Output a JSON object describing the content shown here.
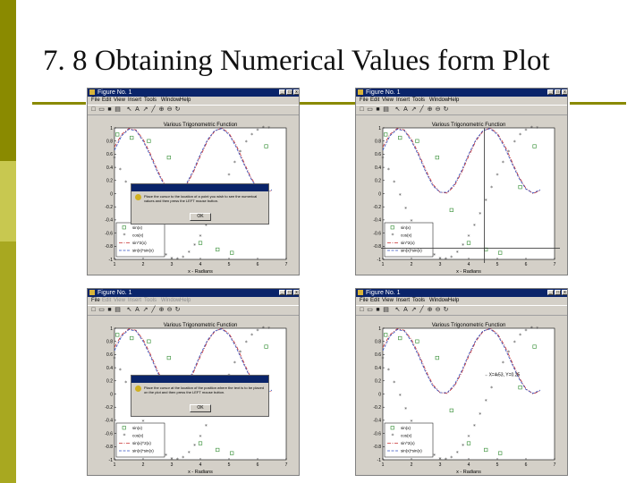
{
  "slide": {
    "title": "7. 8 Obtaining Numerical Values form Plot",
    "colors": {
      "sidebar_top": "#8a8a00",
      "sidebar_mid": "#c8c850",
      "sidebar_bottom": "#a8a820",
      "rule": "#8a8a00"
    }
  },
  "figure_window": {
    "title": "Figure No. 1",
    "menu": [
      "File",
      "Edit",
      "View",
      "Insert",
      "Tools",
      "Window",
      "Help"
    ],
    "toolbar_icons": [
      "new-file-icon",
      "open-folder-icon",
      "save-icon",
      "print-icon",
      "select-arrow-icon",
      "text-insert-icon",
      "arrow-insert-icon",
      "line-insert-icon",
      "zoom-in-icon",
      "zoom-out-icon",
      "rotate-icon"
    ],
    "title_buttons": [
      "minimize",
      "maximize",
      "close"
    ]
  },
  "windows": [
    {
      "id": "top-left",
      "menu_dimmed": false,
      "dialog": {
        "text": "Place the cursor to the location of a point you wish to see the numerical values and then press the LEFT mouse button.",
        "button": "OK"
      },
      "legend_style": "short"
    },
    {
      "id": "top-right",
      "menu_dimmed": false,
      "crosshair": true,
      "legend_style": "short"
    },
    {
      "id": "bottom-left",
      "menu_dimmed": true,
      "dialog": {
        "text": "Place the cursor at the location of the position where the text is to be placed on the plot and then press the LEFT mouse button.",
        "button": "OK"
      },
      "legend_style": "long"
    },
    {
      "id": "bottom-right",
      "menu_dimmed": false,
      "annotation": "←X=4.53, Y=0.25",
      "legend_style": "short"
    }
  ],
  "chart_data": {
    "type": "line",
    "title": "Various Trigonometric Function",
    "xlabel": "x - Radians",
    "ylabel": "",
    "xlim": [
      1,
      7
    ],
    "ylim": [
      -1,
      1
    ],
    "x_ticks": [
      "1",
      "2",
      "3",
      "4",
      "5",
      "6",
      "7"
    ],
    "y_ticks": [
      "1",
      "0.8",
      "0.6",
      "0.4",
      "0.2",
      "0",
      "-0.2",
      "-0.4",
      "-0.6",
      "-0.8",
      "-1"
    ],
    "series": [
      {
        "name": "sin(x)",
        "marker": "square",
        "color": "#2e8b2e",
        "x": [
          1.1,
          1.6,
          2.2,
          2.9,
          3.4,
          4.0,
          4.6,
          5.1,
          5.8,
          6.3
        ],
        "y": [
          0.9,
          0.85,
          0.8,
          0.55,
          -0.25,
          -0.75,
          -0.85,
          -0.9,
          0.1,
          0.72
        ]
      },
      {
        "name": "cos(x)",
        "marker": "star",
        "color": "#555555",
        "x": [
          1.0,
          1.2,
          1.4,
          1.6,
          1.8,
          2.0,
          2.2,
          2.4,
          2.6,
          2.8,
          3.0,
          3.2,
          3.4,
          3.6,
          3.8,
          4.0,
          4.2,
          4.4,
          4.6,
          4.8,
          5.0,
          5.2,
          5.4,
          5.6,
          5.8,
          6.0,
          6.2,
          6.4
        ],
        "y": [
          0.54,
          0.36,
          0.17,
          -0.03,
          -0.23,
          -0.42,
          -0.59,
          -0.74,
          -0.86,
          -0.94,
          -0.99,
          -1.0,
          -0.97,
          -0.9,
          -0.79,
          -0.65,
          -0.49,
          -0.31,
          -0.11,
          0.09,
          0.28,
          0.47,
          0.63,
          0.78,
          0.89,
          0.96,
          1.0,
          0.99
        ]
      },
      {
        "name": "sin(x)^2(x)",
        "line": "dash-dot",
        "color": "#c83030",
        "x": [
          1.0,
          1.25,
          1.5,
          1.75,
          2.0,
          2.25,
          2.5,
          2.75,
          3.0,
          3.25,
          3.5,
          3.75,
          4.0,
          4.25,
          4.5,
          4.75,
          5.0,
          5.25,
          5.5,
          5.75,
          6.0,
          6.25,
          6.5
        ],
        "y": [
          0.71,
          0.9,
          0.99,
          0.97,
          0.83,
          0.61,
          0.36,
          0.14,
          0.02,
          0.01,
          0.12,
          0.32,
          0.57,
          0.8,
          0.95,
          1.0,
          0.92,
          0.74,
          0.5,
          0.26,
          0.08,
          0.0,
          0.05
        ]
      },
      {
        "name": "sin(x)*sin(x)",
        "line": "dashed",
        "color": "#3050c0",
        "x": [
          1.0,
          1.25,
          1.5,
          1.75,
          2.0,
          2.25,
          2.5,
          2.75,
          3.0,
          3.25,
          3.5,
          3.75,
          4.0,
          4.25,
          4.5,
          4.75,
          5.0,
          5.25,
          5.5,
          5.75,
          6.0,
          6.25,
          6.5
        ],
        "y": [
          0.66,
          0.88,
          0.98,
          0.96,
          0.8,
          0.58,
          0.33,
          0.12,
          0.02,
          0.02,
          0.14,
          0.35,
          0.6,
          0.82,
          0.96,
          0.99,
          0.9,
          0.71,
          0.47,
          0.24,
          0.07,
          0.01,
          0.06
        ]
      }
    ],
    "legend_short": [
      "sin(x)",
      "cos(x)",
      "sin^2(x)",
      "sin(x)*sin(x)"
    ],
    "legend_long": [
      "sin(x)",
      "cos(x)",
      "sin(x)^2(x)",
      "sin(x)*sin(x)"
    ],
    "legend_placement": "bottom-left",
    "grid": false
  }
}
